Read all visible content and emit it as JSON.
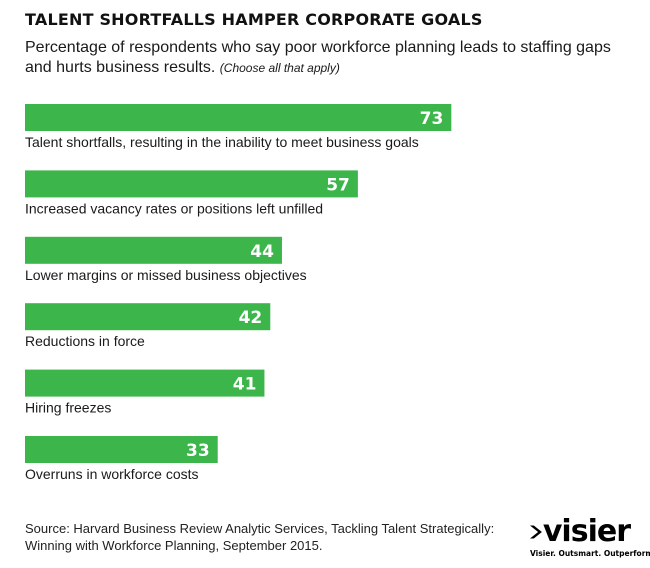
{
  "header": {
    "title": "TALENT SHORTFALLS HAMPER CORPORATE GOALS",
    "subtitle": "Percentage of respondents who say poor workforce planning leads to staffing gaps and hurts business results.",
    "subtitle_note": "(Choose all that apply)"
  },
  "chart_data": {
    "type": "bar",
    "orientation": "horizontal",
    "categories": [
      "Talent shortfalls, resulting in the inability to meet business goals",
      "Increased vacancy rates or positions left unfilled",
      "Lower margins or missed business objectives",
      "Reductions in force",
      "Hiring freezes",
      "Overruns in workforce costs"
    ],
    "values": [
      73,
      57,
      44,
      42,
      41,
      33
    ],
    "bar_color": "#3cb54a",
    "value_label_color": "#ffffff",
    "title": "TALENT SHORTFALLS HAMPER CORPORATE GOALS",
    "xlabel": "",
    "ylabel": "",
    "grid": false
  },
  "footer": {
    "source": "Source: Harvard Business Review Analytic Services, Tackling Talent Strategically: Winning with Workforce Planning, September 2015.",
    "logo_text": "visier",
    "logo_tagline": "Visier. Outsmart. Outperform."
  }
}
